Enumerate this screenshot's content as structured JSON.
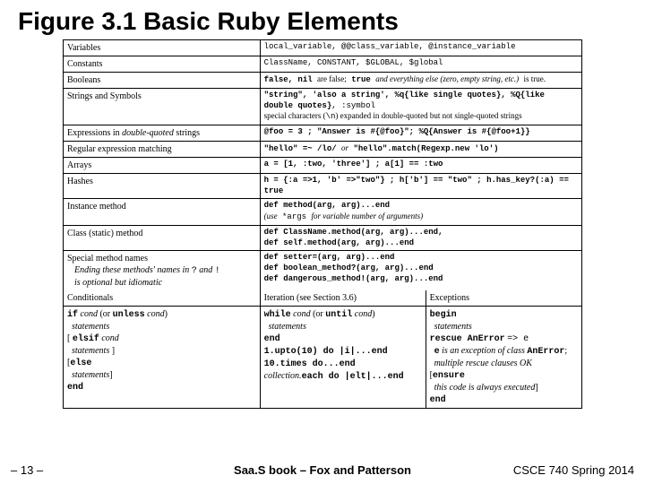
{
  "title": "Figure 3.1 Basic Ruby Elements",
  "rows": [
    {
      "left": "Variables",
      "right": "local_variable, @@class_variable, @instance_variable"
    },
    {
      "left": "Constants",
      "right": "ClassName, CONSTANT, $GLOBAL, $global"
    },
    {
      "left": "Booleans",
      "right_html": "<span class='mono bold'>false, nil</span> <span class='serif'>are false;</span> <span class='mono bold'>true</span> <span class='serif italic'>and everything else (zero, empty string, etc.)</span> <span class='serif'>is true.</span>"
    },
    {
      "left": "Strings and Symbols",
      "right_html": "<span class='mono bold'>\"string\", 'also a string', %q{like single quotes}, %Q{like double quotes}</span>, <span class='mono'>:symbol</span><br><span class='serif'>special characters (</span><span class='mono'>\\n</span><span class='serif'>) expanded in double-quoted but not single-quoted strings</span>"
    },
    {
      "left_html": "<span class='serif'>Expressions in</span> <span class='serif italic'>double-quoted</span> <span class='serif'>strings</span>",
      "right_html": "<span class='mono bold'>@foo = 3 ; \"Answer is #{@foo}\"; %Q{Answer is #{@foo+1}}</span>"
    },
    {
      "left": "Regular expression matching",
      "right_html": "<span class='mono bold'>\"hello\" =~ /lo/</span> <span class='serif italic'>or</span> <span class='mono bold'>\"hello\".match(Regexp.new 'lo')</span>"
    },
    {
      "left": "Arrays",
      "right_html": "<span class='mono bold'>a = [1, :two, 'three'] ; a[1] == :two</span>"
    },
    {
      "left": "Hashes",
      "right_html": "<span class='mono bold'>h = {:a =>1, 'b' =>\"two\"} ; h['b'] == \"two\" ; h.has_key?(:a) == true</span>"
    },
    {
      "left": "Instance method",
      "right_html": "<span class='mono bold'>def method(arg, arg)...end</span><br><span class='serif italic'>(use</span> <span class='mono'>*args</span> <span class='serif italic'>for variable number of arguments)</span>"
    },
    {
      "left": "Class (static) method",
      "right_html": "<span class='mono bold'>def ClassName.method(arg, arg)...end,<br>def self.method(arg, arg)...end</span>"
    },
    {
      "left_html": "<span class='serif'>Special method names</span><br><span class='serif italic indent'>Ending these methods' names in</span> <span class='mono'>?</span> <span class='serif italic'>and</span> <span class='mono'>!</span><br><span class='serif italic indent'>is optional but idiomatic</span>",
      "right_html": "<span class='mono bold'>def setter=(arg, arg)...end<br>def boolean_method?(arg, arg)...end<br>def dangerous_method!(arg, arg)...end</span>"
    }
  ],
  "header3": {
    "c1": "Conditionals",
    "c2": "Iteration (see Section 3.6)",
    "c3": "Exceptions"
  },
  "bottom": {
    "c1_html": "<span class='mono bold'>if</span> <span class='serif italic'>cond</span> <span class='serif'>(or</span> <span class='mono bold'>unless</span> <span class='serif italic'>cond</span><span class='serif'>)</span><br>&nbsp;&nbsp;<span class='serif italic'>statements</span><br><span class='serif'>[</span> <span class='mono bold'>elsif</span> <span class='serif italic'>cond</span><br>&nbsp;&nbsp;<span class='serif italic'>statements</span> <span class='serif'>]</span><br><span class='serif'>[</span><span class='mono bold'>else</span><br>&nbsp;&nbsp;<span class='serif italic'>statements</span><span class='serif'>]</span><br><span class='mono bold'>end</span>",
    "c2_html": "<span class='mono bold'>while</span> <span class='serif italic'>cond</span> <span class='serif'>(or</span> <span class='mono bold'>until</span> <span class='serif italic'>cond</span><span class='serif'>)</span><br>&nbsp;&nbsp;<span class='serif italic'>statements</span><br><span class='mono bold'>end</span><br><span class='mono bold'>1.upto(10) do |i|...end<br>10.times do...end</span><br><span class='serif italic'>collection.</span><span class='mono bold'>each do |elt|...end</span>",
    "c3_html": "<span class='mono bold'>begin</span><br>&nbsp;&nbsp;<span class='serif italic'>statements</span><br><span class='mono bold'>rescue AnError</span> <span class='mono'>=&gt; e</span><br>&nbsp;&nbsp;<span class='mono bold'>e</span> <span class='serif italic'>is an exception of class</span> <span class='mono bold'>AnError</span><span class='serif'>;</span><br>&nbsp;&nbsp;<span class='serif italic'>multiple rescue clauses OK</span><br><span class='serif'>[</span><span class='mono bold'>ensure</span><br>&nbsp;&nbsp;<span class='serif italic'>this code is always executed</span><span class='serif'>]</span><br><span class='mono bold'>end</span>"
  },
  "footer": {
    "left": "– 13 –",
    "center": "Saa.S book – Fox and Patterson",
    "right": "CSCE 740 Spring 2014"
  }
}
